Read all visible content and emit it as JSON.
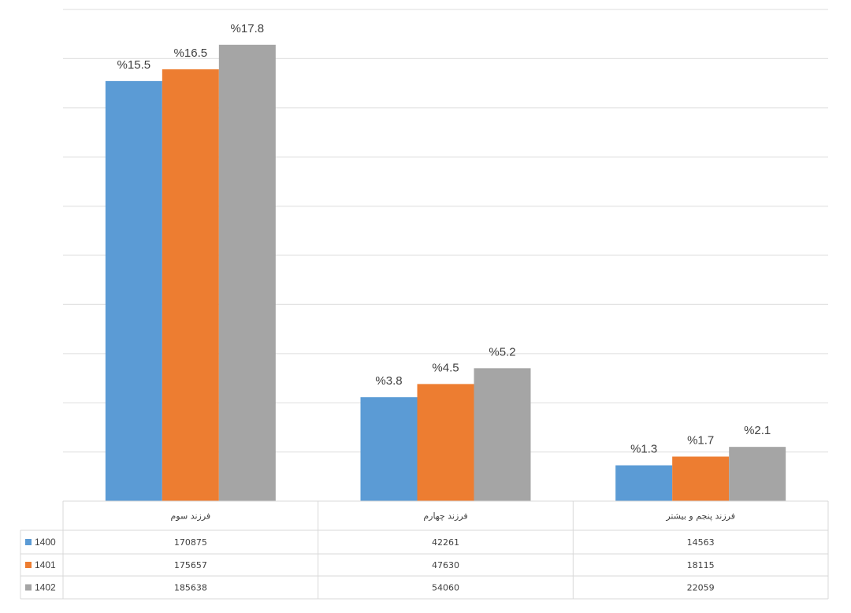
{
  "chart_data": {
    "type": "bar",
    "categories": [
      "فرزند سوم",
      "فرزند چهارم",
      "فرزند پنجم و بیشتر"
    ],
    "series": [
      {
        "name": "1400",
        "color": "#5b9bd5",
        "values": [
          170875,
          42261,
          14563
        ],
        "percent_labels": [
          "%15.5",
          "%3.8",
          "%1.3"
        ]
      },
      {
        "name": "1401",
        "color": "#ed7d31",
        "values": [
          175657,
          47630,
          18115
        ],
        "percent_labels": [
          "%16.5",
          "%4.5",
          "%1.7"
        ]
      },
      {
        "name": "1402",
        "color": "#a5a5a5",
        "values": [
          185638,
          54060,
          22059
        ],
        "percent_labels": [
          "%17.8",
          "%5.2",
          "%2.1"
        ]
      }
    ],
    "ylim": [
      0,
      200000
    ],
    "grid": true,
    "legend": "data-table-left",
    "title": "",
    "xlabel": "",
    "ylabel": ""
  }
}
